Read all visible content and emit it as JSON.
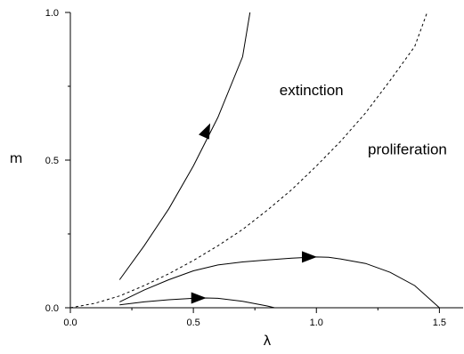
{
  "chart_data": {
    "type": "line",
    "title": "",
    "xlabel": "λ",
    "ylabel": "m",
    "xlim": [
      0.0,
      1.6
    ],
    "ylim": [
      0.0,
      1.0
    ],
    "x_ticks": [
      {
        "value": 0.0,
        "label": "0.0"
      },
      {
        "value": 0.5,
        "label": "0.5"
      },
      {
        "value": 1.0,
        "label": "1.0"
      },
      {
        "value": 1.5,
        "label": "1.5"
      }
    ],
    "y_ticks": [
      {
        "value": 0.0,
        "label": "0.0"
      },
      {
        "value": 0.5,
        "label": "0.5"
      },
      {
        "value": 1.0,
        "label": "1.0"
      }
    ],
    "x_minor_step": 0.25,
    "y_minor_step": 0.25,
    "grid": false,
    "boundary": {
      "style": "dashed",
      "points": [
        [
          0.0,
          0.0
        ],
        [
          0.1,
          0.015
        ],
        [
          0.2,
          0.04
        ],
        [
          0.3,
          0.075
        ],
        [
          0.4,
          0.115
        ],
        [
          0.5,
          0.16
        ],
        [
          0.6,
          0.21
        ],
        [
          0.7,
          0.265
        ],
        [
          0.8,
          0.33
        ],
        [
          0.9,
          0.4
        ],
        [
          1.0,
          0.48
        ],
        [
          1.1,
          0.565
        ],
        [
          1.2,
          0.66
        ],
        [
          1.3,
          0.77
        ],
        [
          1.4,
          0.885
        ],
        [
          1.45,
          1.0
        ]
      ]
    },
    "series": [
      {
        "style": "solid",
        "points": [
          [
            0.2,
            0.095
          ],
          [
            0.3,
            0.21
          ],
          [
            0.4,
            0.335
          ],
          [
            0.5,
            0.48
          ],
          [
            0.6,
            0.645
          ],
          [
            0.7,
            0.85
          ],
          [
            0.73,
            1.0
          ]
        ],
        "arrow": {
          "at": [
            0.555,
            0.6
          ],
          "direction": [
            0.55,
            1.0
          ]
        }
      },
      {
        "style": "solid",
        "points": [
          [
            0.2,
            0.02
          ],
          [
            0.3,
            0.06
          ],
          [
            0.4,
            0.095
          ],
          [
            0.5,
            0.125
          ],
          [
            0.6,
            0.145
          ],
          [
            0.7,
            0.155
          ],
          [
            0.8,
            0.162
          ],
          [
            0.9,
            0.168
          ],
          [
            1.0,
            0.172
          ],
          [
            1.05,
            0.171
          ],
          [
            1.1,
            0.165
          ],
          [
            1.2,
            0.15
          ],
          [
            1.3,
            0.12
          ],
          [
            1.4,
            0.075
          ],
          [
            1.5,
            0.0
          ]
        ],
        "arrow": {
          "at": [
            0.97,
            0.172
          ],
          "direction": [
            1.0,
            0.0
          ]
        }
      },
      {
        "style": "solid",
        "points": [
          [
            0.2,
            0.01
          ],
          [
            0.3,
            0.02
          ],
          [
            0.4,
            0.027
          ],
          [
            0.5,
            0.032
          ],
          [
            0.55,
            0.033
          ],
          [
            0.6,
            0.032
          ],
          [
            0.7,
            0.022
          ],
          [
            0.8,
            0.006
          ],
          [
            0.83,
            0.0
          ]
        ],
        "arrow": {
          "at": [
            0.52,
            0.033
          ],
          "direction": [
            1.0,
            0.0
          ]
        }
      }
    ],
    "annotations": [
      {
        "text": "extinction",
        "x": 0.98,
        "y": 0.72
      },
      {
        "text": "proliferation",
        "x": 1.37,
        "y": 0.52
      }
    ]
  }
}
